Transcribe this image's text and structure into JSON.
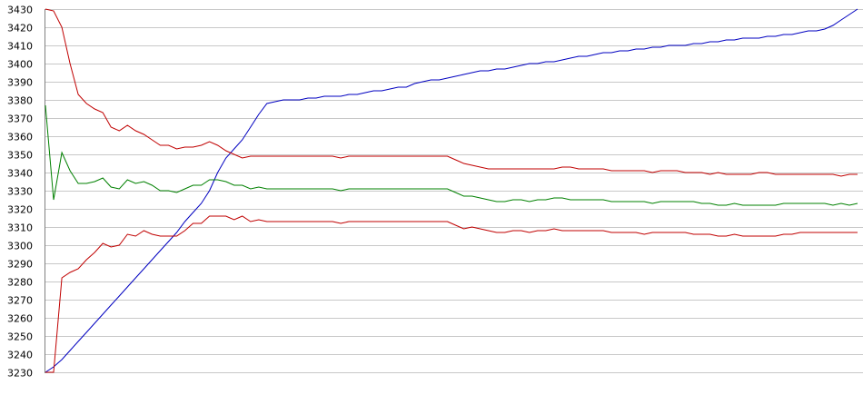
{
  "chart_data": {
    "type": "line",
    "title": "",
    "xlabel": "",
    "ylabel": "",
    "ylim": [
      3230,
      3430
    ],
    "y_ticks": [
      3230,
      3240,
      3250,
      3260,
      3270,
      3280,
      3290,
      3300,
      3310,
      3320,
      3330,
      3340,
      3350,
      3360,
      3370,
      3380,
      3390,
      3400,
      3410,
      3420,
      3430
    ],
    "y_tick_labels": [
      "3230",
      "3240",
      "3250",
      "3260",
      "3270",
      "3280",
      "3290",
      "3300",
      "3310",
      "3320",
      "3330",
      "3340",
      "3350",
      "3360",
      "3370",
      "3380",
      "3390",
      "3400",
      "3410",
      "3420",
      "3430"
    ],
    "grid": "horizontal",
    "legend": "none",
    "x_count": 100,
    "series": [
      {
        "color": "#0000c0",
        "values": [
          3230,
          3233,
          3237,
          3242,
          3247,
          3252,
          3257,
          3262,
          3267,
          3272,
          3277,
          3282,
          3287,
          3292,
          3297,
          3302,
          3307,
          3313,
          3318,
          3323,
          3330,
          3340,
          3348,
          3353,
          3358,
          3365,
          3372,
          3378,
          3379,
          3380,
          3380,
          3380,
          3381,
          3381,
          3382,
          3382,
          3382,
          3383,
          3383,
          3384,
          3385,
          3385,
          3386,
          3387,
          3387,
          3389,
          3390,
          3391,
          3391,
          3392,
          3393,
          3394,
          3395,
          3396,
          3396,
          3397,
          3397,
          3398,
          3399,
          3400,
          3400,
          3401,
          3401,
          3402,
          3403,
          3404,
          3404,
          3405,
          3406,
          3406,
          3407,
          3407,
          3408,
          3408,
          3409,
          3409,
          3410,
          3410,
          3410,
          3411,
          3411,
          3412,
          3412,
          3413,
          3413,
          3414,
          3414,
          3414,
          3415,
          3415,
          3416,
          3416,
          3417,
          3418,
          3418,
          3419,
          3421,
          3424,
          3427,
          3430
        ]
      },
      {
        "color": "#c00000",
        "values": [
          3430,
          3429,
          3420,
          3400,
          3383,
          3378,
          3375,
          3373,
          3365,
          3363,
          3366,
          3363,
          3361,
          3358,
          3355,
          3355,
          3353,
          3354,
          3354,
          3355,
          3357,
          3355,
          3352,
          3350,
          3348,
          3349,
          3349,
          3349,
          3349,
          3349,
          3349,
          3349,
          3349,
          3349,
          3349,
          3349,
          3348,
          3349,
          3349,
          3349,
          3349,
          3349,
          3349,
          3349,
          3349,
          3349,
          3349,
          3349,
          3349,
          3349,
          3347,
          3345,
          3344,
          3343,
          3342,
          3342,
          3342,
          3342,
          3342,
          3342,
          3342,
          3342,
          3342,
          3343,
          3343,
          3342,
          3342,
          3342,
          3342,
          3341,
          3341,
          3341,
          3341,
          3341,
          3340,
          3341,
          3341,
          3341,
          3340,
          3340,
          3340,
          3339,
          3340,
          3339,
          3339,
          3339,
          3339,
          3340,
          3340,
          3339,
          3339,
          3339,
          3339,
          3339,
          3339,
          3339,
          3339,
          3338,
          3339,
          3339
        ]
      },
      {
        "color": "#008000",
        "values": [
          3377,
          3325,
          3351,
          3341,
          3334,
          3334,
          3335,
          3337,
          3332,
          3331,
          3336,
          3334,
          3335,
          3333,
          3330,
          3330,
          3329,
          3331,
          3333,
          3333,
          3336,
          3336,
          3335,
          3333,
          3333,
          3331,
          3332,
          3331,
          3331,
          3331,
          3331,
          3331,
          3331,
          3331,
          3331,
          3331,
          3330,
          3331,
          3331,
          3331,
          3331,
          3331,
          3331,
          3331,
          3331,
          3331,
          3331,
          3331,
          3331,
          3331,
          3329,
          3327,
          3327,
          3326,
          3325,
          3324,
          3324,
          3325,
          3325,
          3324,
          3325,
          3325,
          3326,
          3326,
          3325,
          3325,
          3325,
          3325,
          3325,
          3324,
          3324,
          3324,
          3324,
          3324,
          3323,
          3324,
          3324,
          3324,
          3324,
          3324,
          3323,
          3323,
          3322,
          3322,
          3323,
          3322,
          3322,
          3322,
          3322,
          3322,
          3323,
          3323,
          3323,
          3323,
          3323,
          3323,
          3322,
          3323,
          3322,
          3323
        ]
      },
      {
        "color": "#c00000",
        "values": [
          3230,
          3230,
          3282,
          3285,
          3287,
          3292,
          3296,
          3301,
          3299,
          3300,
          3306,
          3305,
          3308,
          3306,
          3305,
          3305,
          3305,
          3308,
          3312,
          3312,
          3316,
          3316,
          3316,
          3314,
          3316,
          3313,
          3314,
          3313,
          3313,
          3313,
          3313,
          3313,
          3313,
          3313,
          3313,
          3313,
          3312,
          3313,
          3313,
          3313,
          3313,
          3313,
          3313,
          3313,
          3313,
          3313,
          3313,
          3313,
          3313,
          3313,
          3311,
          3309,
          3310,
          3309,
          3308,
          3307,
          3307,
          3308,
          3308,
          3307,
          3308,
          3308,
          3309,
          3308,
          3308,
          3308,
          3308,
          3308,
          3308,
          3307,
          3307,
          3307,
          3307,
          3306,
          3307,
          3307,
          3307,
          3307,
          3307,
          3306,
          3306,
          3306,
          3305,
          3305,
          3306,
          3305,
          3305,
          3305,
          3305,
          3305,
          3306,
          3306,
          3307,
          3307,
          3307,
          3307,
          3307,
          3307,
          3307,
          3307
        ]
      }
    ]
  }
}
